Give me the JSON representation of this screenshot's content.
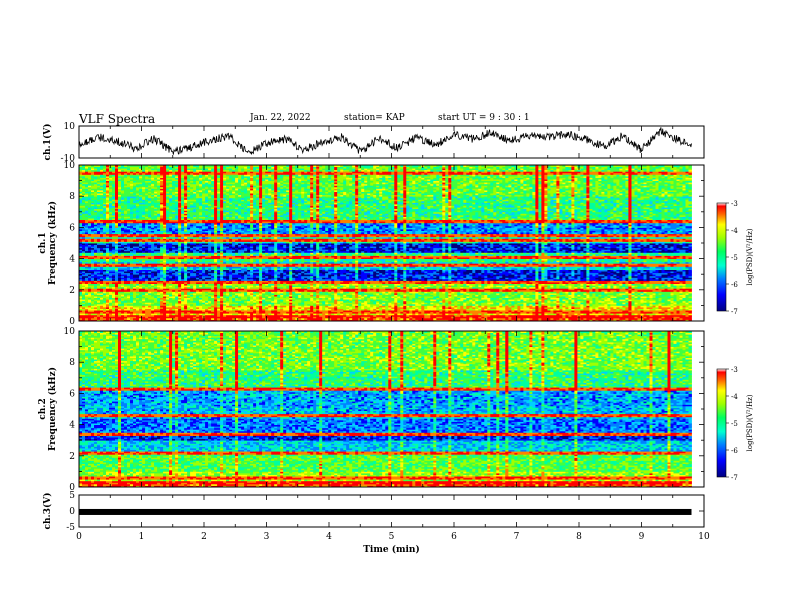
{
  "header": {
    "title": "VLF Spectra",
    "date": "Jan. 22, 2022",
    "station": "station= KAP",
    "start": "start UT =  9 : 30 : 1"
  },
  "colors": {
    "trace": "#000000",
    "frame": "#000000",
    "colormap": [
      "#000080",
      "#0000ff",
      "#0080ff",
      "#00d0ff",
      "#00ffa0",
      "#40ff40",
      "#a0ff00",
      "#ffff00",
      "#ff8000",
      "#ff0000",
      "#ffffff"
    ]
  },
  "chart_data": [
    {
      "type": "line",
      "panel": "ch1-waveform",
      "ylabel": "ch.1(V)",
      "ylim": [
        -10,
        10
      ],
      "yticks": [
        "10",
        "-10"
      ],
      "xlim": [
        0,
        10
      ],
      "x_minutes": [
        0,
        0.3,
        0.6,
        0.9,
        1.2,
        1.5,
        1.8,
        2.1,
        2.4,
        2.7,
        3.0,
        3.3,
        3.6,
        3.9,
        4.2,
        4.5,
        4.8,
        5.1,
        5.4,
        5.7,
        6.0,
        6.3,
        6.6,
        6.9,
        7.2,
        7.5,
        7.8,
        8.1,
        8.4,
        8.7,
        9.0,
        9.3,
        9.6,
        9.8
      ],
      "values_volts": [
        -2,
        3,
        1,
        -4,
        2,
        -6,
        -3,
        1,
        4,
        -7,
        -1,
        2,
        -5,
        0,
        3,
        -6,
        2,
        -4,
        3,
        -2,
        5,
        2,
        6,
        1,
        4,
        3,
        5,
        2,
        -3,
        4,
        -5,
        7,
        1,
        -3
      ]
    },
    {
      "type": "heatmap",
      "panel": "ch1-spectrogram",
      "ylabel": "ch.1\nFrequency (kHz)",
      "xlim": [
        0,
        10
      ],
      "ylim_khz": [
        0,
        10
      ],
      "yticks": [
        "0",
        "2",
        "4",
        "6",
        "8",
        "10"
      ],
      "colorbar": {
        "label": "log(PSD)(V²/Hz)",
        "range": [
          -7,
          -3
        ],
        "ticks": [
          "-3",
          "-4",
          "-5",
          "-6",
          "-7"
        ]
      },
      "bands_khz": [
        {
          "from": 0.0,
          "to": 0.4,
          "level": 0.9
        },
        {
          "from": 0.4,
          "to": 1.0,
          "level": 0.75
        },
        {
          "from": 1.0,
          "to": 2.0,
          "level": 0.6
        },
        {
          "from": 2.0,
          "to": 2.6,
          "level": 0.62
        },
        {
          "from": 2.6,
          "to": 3.3,
          "level": 0.15
        },
        {
          "from": 3.3,
          "to": 3.8,
          "level": 0.35
        },
        {
          "from": 3.8,
          "to": 4.4,
          "level": 0.48
        },
        {
          "from": 4.4,
          "to": 5.0,
          "level": 0.15
        },
        {
          "from": 5.0,
          "to": 5.6,
          "level": 0.42
        },
        {
          "from": 5.6,
          "to": 6.3,
          "level": 0.28
        },
        {
          "from": 6.3,
          "to": 6.6,
          "level": 0.55
        },
        {
          "from": 6.6,
          "to": 8.0,
          "level": 0.5
        },
        {
          "from": 8.0,
          "to": 10.0,
          "level": 0.58
        }
      ],
      "lines_khz": [
        0.3,
        0.6,
        2.0,
        2.5,
        3.6,
        4.1,
        5.2,
        5.5,
        6.4,
        9.5
      ]
    },
    {
      "type": "heatmap",
      "panel": "ch2-spectrogram",
      "ylabel": "ch.2\nFrequency (kHz)",
      "xlim": [
        0,
        10
      ],
      "ylim_khz": [
        0,
        10
      ],
      "yticks": [
        "0",
        "2",
        "4",
        "6",
        "8",
        "10"
      ],
      "colorbar": {
        "label": "log(PSD)(V²/Hz)",
        "range": [
          -7,
          -3
        ],
        "ticks": [
          "-3",
          "-4",
          "-5",
          "-6",
          "-7"
        ]
      },
      "bands_khz": [
        {
          "from": 0.0,
          "to": 0.4,
          "level": 0.9
        },
        {
          "from": 0.4,
          "to": 1.0,
          "level": 0.65
        },
        {
          "from": 1.0,
          "to": 2.2,
          "level": 0.55
        },
        {
          "from": 2.2,
          "to": 3.0,
          "level": 0.35
        },
        {
          "from": 3.0,
          "to": 3.5,
          "level": 0.15
        },
        {
          "from": 3.5,
          "to": 4.4,
          "level": 0.25
        },
        {
          "from": 4.4,
          "to": 5.2,
          "level": 0.32
        },
        {
          "from": 5.2,
          "to": 6.3,
          "level": 0.3
        },
        {
          "from": 6.3,
          "to": 7.5,
          "level": 0.5
        },
        {
          "from": 7.5,
          "to": 10.0,
          "level": 0.6
        }
      ],
      "lines_khz": [
        0.3,
        0.6,
        2.2,
        3.4,
        4.6,
        6.3
      ]
    },
    {
      "type": "line",
      "panel": "ch3-waveform",
      "ylabel": "ch.3(V)",
      "ylim": [
        -5,
        5
      ],
      "yticks": [
        "5",
        "0",
        "-5"
      ],
      "xlim": [
        0,
        10
      ],
      "x_minutes": [
        0,
        9.8
      ],
      "values_volts": [
        -0.3,
        -0.3
      ]
    }
  ],
  "xaxis": {
    "label": "Time (min)",
    "ticks": [
      "0",
      "1",
      "2",
      "3",
      "4",
      "5",
      "6",
      "7",
      "8",
      "9",
      "10"
    ]
  }
}
